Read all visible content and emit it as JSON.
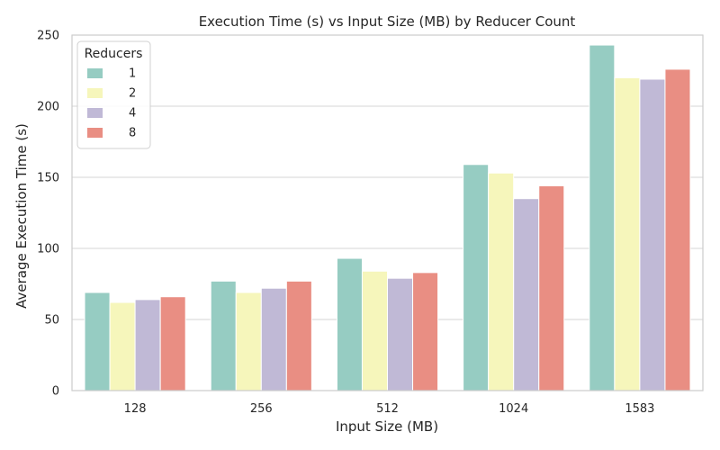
{
  "chart_data": {
    "type": "bar",
    "title": "Execution Time (s) vs Input Size (MB) by Reducer Count",
    "xlabel": "Input Size (MB)",
    "ylabel": "Average Execution Time (s)",
    "categories": [
      "128",
      "256",
      "512",
      "1024",
      "1583"
    ],
    "ylim": [
      0,
      250
    ],
    "yticks": [
      0,
      50,
      100,
      150,
      200,
      250
    ],
    "grid": "horizontal",
    "legend": {
      "title": "Reducers",
      "placement": "top-left"
    },
    "series": [
      {
        "name": "1",
        "color": "#96ccc2",
        "values": [
          69,
          77,
          93,
          159,
          243
        ]
      },
      {
        "name": "2",
        "color": "#f6f6bb",
        "values": [
          62,
          69,
          84,
          153,
          220
        ]
      },
      {
        "name": "4",
        "color": "#c0b9d6",
        "values": [
          64,
          72,
          79,
          135,
          219
        ]
      },
      {
        "name": "8",
        "color": "#e98e83",
        "values": [
          66,
          77,
          83,
          144,
          226
        ]
      }
    ]
  }
}
